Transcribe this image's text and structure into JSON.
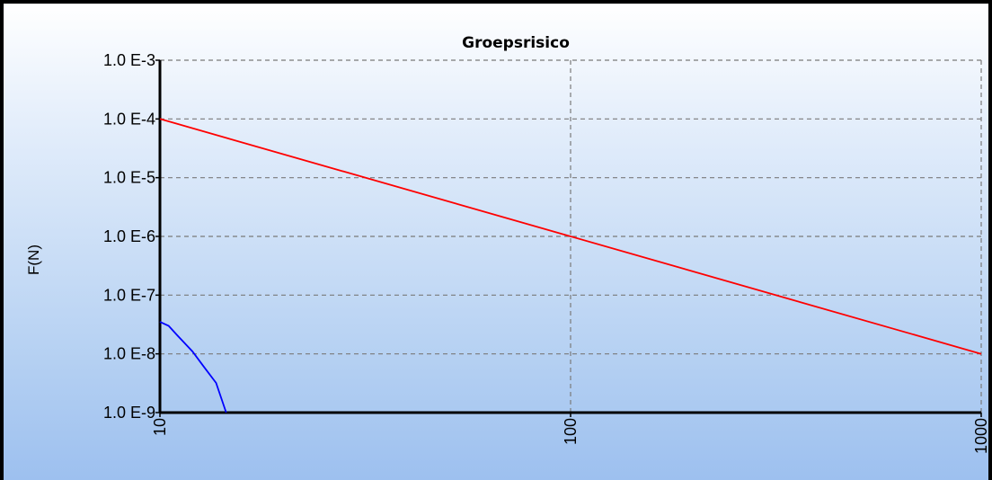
{
  "chart_data": {
    "type": "line",
    "title": "Groepsrisico",
    "xlabel": "",
    "ylabel": "F(N)",
    "x_scale": "log",
    "y_scale": "log",
    "xlim": [
      10,
      1000
    ],
    "ylim": [
      1e-09,
      0.001
    ],
    "x_ticks": [
      {
        "value": 10,
        "label": "10"
      },
      {
        "value": 100,
        "label": "100"
      },
      {
        "value": 1000,
        "label": "1000"
      }
    ],
    "y_ticks": [
      {
        "value": 1e-09,
        "label": "1.0 E-9"
      },
      {
        "value": 1e-08,
        "label": "1.0 E-8"
      },
      {
        "value": 1e-07,
        "label": "1.0 E-7"
      },
      {
        "value": 1e-06,
        "label": "1.0 E-6"
      },
      {
        "value": 1e-05,
        "label": "1.0 E-5"
      },
      {
        "value": 0.0001,
        "label": "1.0 E-4"
      },
      {
        "value": 0.001,
        "label": "1.0 E-3"
      }
    ],
    "grid": true,
    "legend": "none",
    "series": [
      {
        "color": "#ff0000",
        "points": [
          [
            10,
            0.0001
          ],
          [
            100,
            1e-06
          ],
          [
            1000,
            1e-08
          ]
        ]
      },
      {
        "color": "#0000ff",
        "points": [
          [
            10,
            3.5e-08
          ],
          [
            10.5,
            3e-08
          ],
          [
            11,
            2.1e-08
          ],
          [
            12,
            1.1e-08
          ],
          [
            12.8,
            6e-09
          ],
          [
            13.7,
            3.2e-09
          ],
          [
            14.5,
            1e-09
          ]
        ]
      }
    ]
  }
}
